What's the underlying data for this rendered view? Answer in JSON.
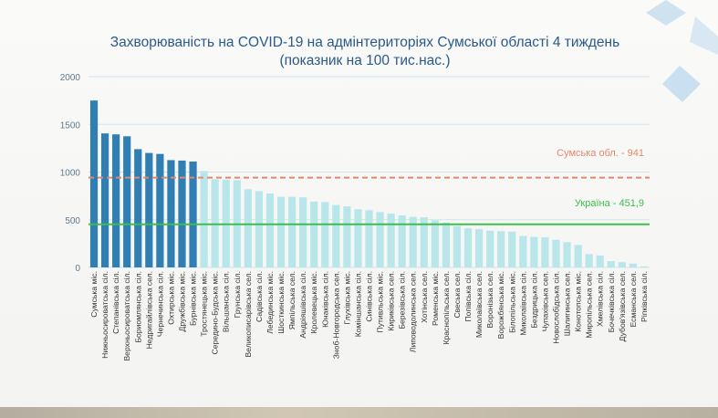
{
  "slide": {
    "title_line1": "Захворюваність на COVID-19 на адмінтериторіях Сумської області 4 тиждень",
    "title_line2": "(показник на 100 тис.нас.)"
  },
  "colors": {
    "bar_dark": "#2f7fb5",
    "bar_light": "#b8e6ea",
    "oblast_line": "#e8866a",
    "ukraine_line": "#3cbf4a",
    "grid": "#cfe3ef",
    "axis_text": "#5d7a8e",
    "deco_blue": "#a9cdea"
  },
  "chart_data": {
    "type": "bar",
    "title": "Захворюваність на COVID-19 на адмінтериторіях Сумської області 4 тиждень (показник на 100 тис.нас.)",
    "ylim": [
      0,
      2000
    ],
    "yticks": [
      0,
      500,
      1000,
      1500,
      2000
    ],
    "grid": true,
    "dark_count": 10,
    "categories": [
      "Сумська міс.",
      "Нижньосироватська сіл.",
      "Степанівська сіл.",
      "Верхньосироватська сіл.",
      "Бориомлянська сіл.",
      "Недригайлівська сел.",
      "Чернечинська сіл.",
      "Охтирська міс.",
      "Дружбівська міс.",
      "Бурнівська міс.",
      "Тростянецька міс.",
      "Середино-Будська міс.",
      "Вільшанська сіл.",
      "Грунська сіл.",
      "Великописарівська сел.",
      "Садівська сіл.",
      "Лебединська міс.",
      "Шосткинська міс.",
      "Ямпільська сел.",
      "Андріяшівська сіл.",
      "Кролевецька міс.",
      "Юнаківська сіл.",
      "Зноб-Новгородська сел.",
      "Глухівська міс.",
      "Коміншанська сіл.",
      "Синівська сіл.",
      "Путивльська міс.",
      "Кириківська сел.",
      "Березівська сіл.",
      "Липоводолинська сел.",
      "Хотінська сел.",
      "Роменська міс.",
      "Краснопільська сел.",
      "Свеська сел.",
      "Попівська сіл.",
      "Миколаївська сел.",
      "Воронізька сел.",
      "Ворожбянська міс.",
      "Білопільська міс.",
      "Миколаївська сіл.",
      "Бездрицька сіл.",
      "Чупахівська сел.",
      "Новослобідська сіл.",
      "Шалигинська сел.",
      "Конотопська міс.",
      "Миропільська сел.",
      "Хмелівська сіл.",
      "Бочечківська сіл.",
      "Дубов'язівська сел.",
      "Есманська сел.",
      "Ріпківська сіл."
    ],
    "values": [
      1750,
      1405,
      1395,
      1375,
      1240,
      1200,
      1190,
      1125,
      1120,
      1110,
      1010,
      925,
      920,
      915,
      820,
      800,
      775,
      740,
      740,
      735,
      690,
      685,
      655,
      640,
      610,
      600,
      580,
      565,
      545,
      530,
      525,
      495,
      470,
      435,
      410,
      400,
      385,
      380,
      375,
      330,
      320,
      315,
      290,
      265,
      235,
      140,
      125,
      65,
      55,
      40,
      10
    ],
    "reference_lines": [
      {
        "label": "Сумська обл. - 941",
        "value": 941,
        "style": "dashed"
      },
      {
        "label": "Україна - 451,9",
        "value": 451.9,
        "style": "solid"
      }
    ]
  }
}
